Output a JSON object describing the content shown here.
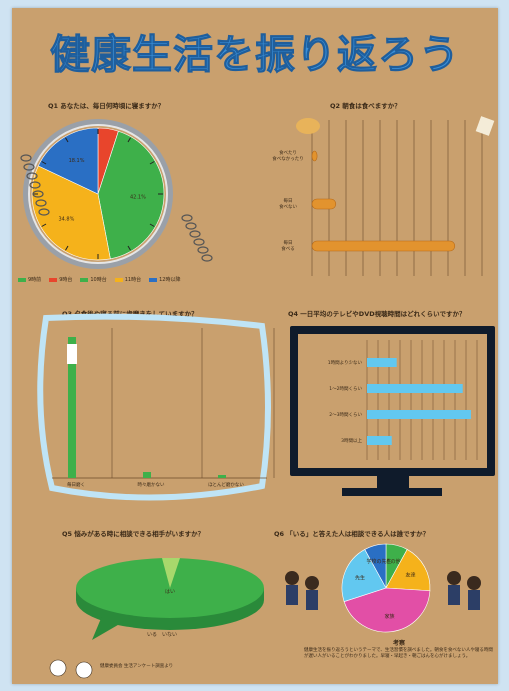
{
  "page": {
    "title": "健康生活を振り返ろう",
    "footnote_heading": "考察",
    "footnote_text": "健康生活を振り返ろうというテーマで、生活習慣を調べました。朝食を食べない人や寝る時間が遅い人がいることがわかりました。早寝・早起き・朝ごはんを心がけましょう。",
    "credit": "健康委員会 生活アンケート調査より"
  },
  "colors": {
    "background": "#cfe3f2",
    "poster": "#c9a06e",
    "title": "#3a8fd8",
    "green": "#3eb04a",
    "yellow": "#f5b21b",
    "red": "#e8452c",
    "blue": "#2a6fc4",
    "pink": "#e24fa6",
    "cyan": "#62c8f0",
    "orange": "#f0a21e",
    "tv": "#0f1b2b"
  },
  "chart_data": [
    {
      "id": "q1",
      "type": "pie",
      "title": "Q1 あなたは、毎日何時頃に寝ますか？",
      "categories": [
        "9時前",
        "9時台",
        "10時台",
        "11時台",
        "12時以降"
      ],
      "values": [
        0,
        5,
        42,
        35,
        18
      ],
      "slice_labels": [
        "",
        "",
        "42.1%",
        "34.8%",
        "18.1%"
      ],
      "colors": [
        "#3eb04a",
        "#e8452c",
        "#3eb04a",
        "#f5b21b",
        "#2a6fc4"
      ],
      "legend": [
        "9時前",
        "9時台",
        "10時台",
        "11時台",
        "12時以降"
      ]
    },
    {
      "id": "q2",
      "type": "bar",
      "title": "Q2 朝食は食べますか？",
      "categories": [
        "食べたり\n食べなかったり",
        "毎日\n食べない",
        "毎日\n食べる"
      ],
      "values": [
        3,
        14,
        84
      ]
    },
    {
      "id": "q3",
      "type": "bar",
      "title": "Q3 夕食後や寝る前に歯磨きをしていますか？",
      "categories": [
        "毎日磨く",
        "時々磨かない",
        "ほとんど磨かない"
      ],
      "values": [
        94,
        4,
        2
      ]
    },
    {
      "id": "q4",
      "type": "bar",
      "title": "Q4 一日平均のテレビやDVD視聴時間はどれくらいですか？",
      "categories": [
        "1時間より少ない",
        "1～2時間くらい",
        "2～3時間くらい",
        "3時間以上"
      ],
      "values": [
        18,
        58,
        63,
        15
      ]
    },
    {
      "id": "q5",
      "type": "pie",
      "title": "Q5 悩みがある時に相談できる相手がいますか？",
      "categories": [
        "はい",
        "いる",
        "いない"
      ],
      "values": [
        95,
        5,
        0
      ],
      "slice_labels": [
        "はい",
        "いる",
        "いない"
      ]
    },
    {
      "id": "q6",
      "type": "pie",
      "title": "Q6 「いる」と答えた人は相談できる人は誰ですか？",
      "categories": [
        "その他",
        "友達",
        "家族",
        "先生",
        "学校の先生"
      ],
      "values": [
        8,
        18,
        44,
        22,
        8
      ],
      "slice_labels": [
        "その他",
        "友達",
        "家族",
        "先生",
        "学校の先生"
      ],
      "colors": [
        "#3eb04a",
        "#f5b21b",
        "#e24fa6",
        "#62c8f0",
        "#2a6fc4"
      ]
    }
  ]
}
